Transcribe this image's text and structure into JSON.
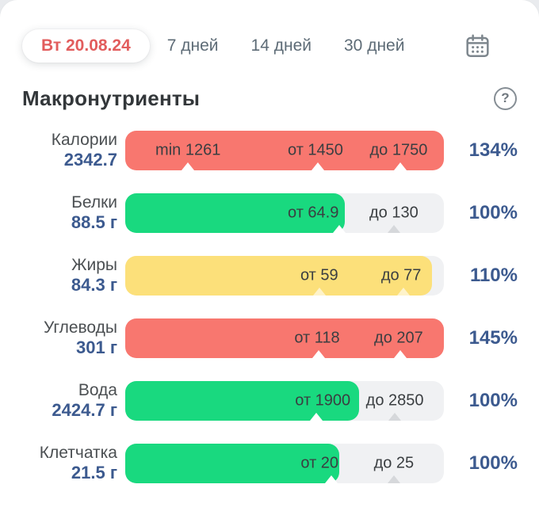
{
  "topbar": {
    "date_pill": "Вт 20.08.24",
    "tabs": [
      "7 дней",
      "14 дней",
      "30 дней"
    ]
  },
  "section": {
    "title": "Макронутриенты",
    "help_label": "?"
  },
  "colors": {
    "red": "#f8776f",
    "green": "#19d97f",
    "yellow": "#fce07a",
    "track": "#f0f1f3",
    "accent_navy": "#3c5a8f",
    "date_red": "#e25d5d",
    "icon_gray": "#7d868d"
  },
  "chart_data": {
    "type": "bar",
    "title": "Макронутриенты",
    "date": "Вт 20.08.24",
    "rows": [
      {
        "name": "Калории",
        "value": "2342.7",
        "percent": "134%",
        "fill_fraction": 1.0,
        "color_key": "red",
        "markers": [
          {
            "label": "min 1261",
            "x": 0.197,
            "tri_x": 0.197,
            "tri": "white"
          },
          {
            "label": "от 1450",
            "x": 0.597,
            "tri_x": 0.604,
            "tri": "white"
          },
          {
            "label": "до 1750",
            "x": 0.858,
            "tri_x": 0.864,
            "tri": "white"
          }
        ]
      },
      {
        "name": "Белки",
        "value": "88.5 г",
        "percent": "100%",
        "fill_fraction": 0.69,
        "color_key": "green",
        "markers": [
          {
            "label": "от 64.9",
            "x": 0.59,
            "tri_x": 0.672,
            "tri": "white"
          },
          {
            "label": "до 130",
            "x": 0.843,
            "tri_x": 0.843,
            "tri": "gray"
          }
        ]
      },
      {
        "name": "Жиры",
        "value": "84.3 г",
        "percent": "110%",
        "fill_fraction": 0.963,
        "color_key": "yellow",
        "markers": [
          {
            "label": "от 59",
            "x": 0.609,
            "tri_x": 0.609,
            "tri": "faint"
          },
          {
            "label": "до 77",
            "x": 0.866,
            "tri_x": 0.872,
            "tri": "faint"
          }
        ]
      },
      {
        "name": "Углеводы",
        "value": "301 г",
        "percent": "145%",
        "fill_fraction": 1.0,
        "color_key": "red",
        "markers": [
          {
            "label": "от 118",
            "x": 0.602,
            "tri_x": 0.608,
            "tri": "white"
          },
          {
            "label": "до 207",
            "x": 0.858,
            "tri_x": 0.864,
            "tri": "white"
          }
        ]
      },
      {
        "name": "Вода",
        "value": "2424.7 г",
        "percent": "100%",
        "fill_fraction": 0.734,
        "color_key": "green",
        "markers": [
          {
            "label": "от 1900",
            "x": 0.62,
            "tri_x": 0.6,
            "tri": "white"
          },
          {
            "label": "до 2850",
            "x": 0.846,
            "tri_x": 0.846,
            "tri": "gray"
          }
        ]
      },
      {
        "name": "Клетчатка",
        "value": "21.5 г",
        "percent": "100%",
        "fill_fraction": 0.672,
        "color_key": "green",
        "markers": [
          {
            "label": "от 20",
            "x": 0.61,
            "tri_x": 0.648,
            "tri": "white"
          },
          {
            "label": "до 25",
            "x": 0.843,
            "tri_x": 0.843,
            "tri": "gray"
          }
        ]
      }
    ]
  }
}
